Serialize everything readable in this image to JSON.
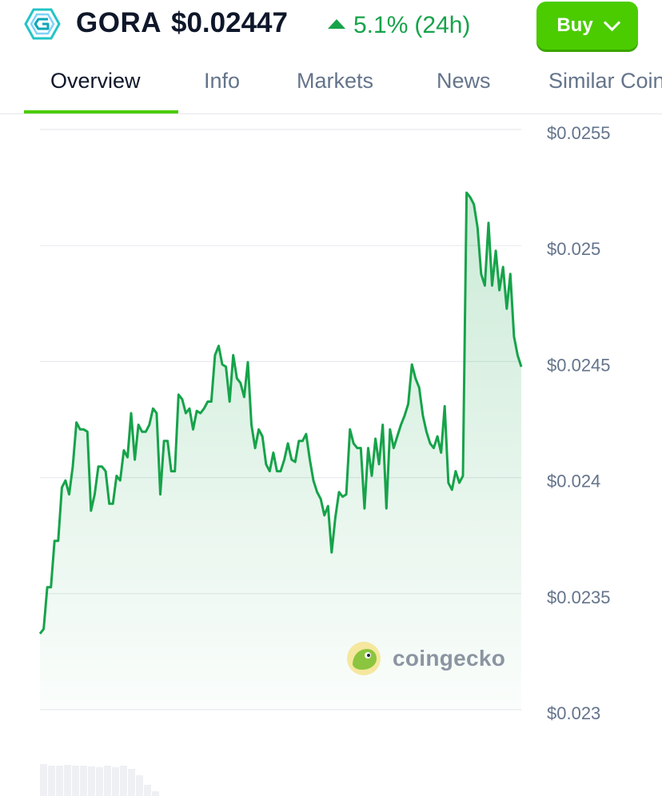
{
  "header": {
    "coin_symbol": "GORA",
    "price": "$0.02447",
    "change_percent": "5.1%",
    "change_period": "(24h)",
    "buy_label": "Buy"
  },
  "tabs": [
    {
      "label": "Overview",
      "active": true
    },
    {
      "label": "Info"
    },
    {
      "label": "Markets"
    },
    {
      "label": "News"
    },
    {
      "label": "Similar Coins"
    }
  ],
  "colors": {
    "accent": "#4bcc00",
    "up": "#16a34a",
    "line": "#16a34a"
  },
  "watermark": "coingecko",
  "chart_data": {
    "type": "area",
    "title": "",
    "xlabel": "",
    "ylabel": "",
    "ylim": [
      0.023,
      0.0255
    ],
    "y_tick_labels": [
      "$0.0255",
      "$0.025",
      "$0.0245",
      "$0.024",
      "$0.0235",
      "$0.023"
    ],
    "y_ticks": [
      0.0255,
      0.025,
      0.0245,
      0.024,
      0.0235,
      0.023
    ],
    "grid": true,
    "series": [
      {
        "values": [
          0.0233,
          0.02332,
          0.0235,
          0.0235,
          0.0237,
          0.0237,
          0.02393,
          0.02396,
          0.0239,
          0.02402,
          0.02421,
          0.02418,
          0.02418,
          0.02417,
          0.02383,
          0.0239,
          0.02402,
          0.02402,
          0.024,
          0.02386,
          0.02386,
          0.02398,
          0.02396,
          0.02409,
          0.02406,
          0.02425,
          0.02405,
          0.0242,
          0.02417,
          0.02417,
          0.0242,
          0.02427,
          0.02425,
          0.0239,
          0.02413,
          0.02413,
          0.024,
          0.024,
          0.02433,
          0.02431,
          0.02425,
          0.02427,
          0.02418,
          0.02426,
          0.02425,
          0.02427,
          0.0243,
          0.0243,
          0.0245,
          0.02454,
          0.02446,
          0.02445,
          0.0243,
          0.0245,
          0.0244,
          0.02438,
          0.02432,
          0.02447,
          0.0242,
          0.0241,
          0.02418,
          0.02415,
          0.02403,
          0.024,
          0.02408,
          0.024,
          0.024,
          0.02405,
          0.02412,
          0.02405,
          0.02404,
          0.02413,
          0.02413,
          0.02416,
          0.02405,
          0.02396,
          0.02391,
          0.02388,
          0.02381,
          0.02385,
          0.02365,
          0.0238,
          0.02391,
          0.02389,
          0.0239,
          0.02418,
          0.02412,
          0.0241,
          0.0241,
          0.02384,
          0.0241,
          0.02398,
          0.02414,
          0.02403,
          0.0242,
          0.02384,
          0.02418,
          0.0241,
          0.02415,
          0.0242,
          0.02424,
          0.02429,
          0.02446,
          0.0244,
          0.02436,
          0.02424,
          0.02417,
          0.02412,
          0.0241,
          0.02415,
          0.02408,
          0.02428,
          0.02395,
          0.02392,
          0.024,
          0.02395,
          0.02398,
          0.0252,
          0.02518,
          0.02515,
          0.02505,
          0.02485,
          0.0248,
          0.02507,
          0.0248,
          0.02495,
          0.02478,
          0.02488,
          0.0247,
          0.02485,
          0.02458,
          0.0245,
          0.02445
        ]
      }
    ]
  }
}
